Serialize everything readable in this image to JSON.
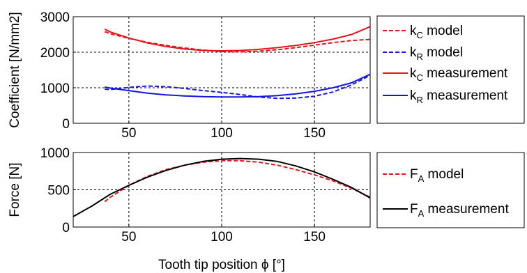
{
  "colors": {
    "model_kc": "#e8141c",
    "model_kr": "#1414e6",
    "meas_kc": "#e8141c",
    "meas_kr": "#1414e6",
    "fa_model": "#e8141c",
    "fa_meas": "#000000"
  },
  "chart_data": [
    {
      "type": "line",
      "title": "",
      "xlabel": "",
      "ylabel": "Coefficient [N/mm2]",
      "xlim": [
        20,
        180
      ],
      "ylim": [
        0,
        3000
      ],
      "xticks": [
        "50",
        "100",
        "150"
      ],
      "yticks": [
        "0",
        "1000",
        "2000",
        "3000"
      ],
      "grid": true,
      "legend_position": "right-outside",
      "series": [
        {
          "legend_main": "k",
          "legend_sub": "C",
          "legend_rest": " model",
          "style": "dashed",
          "color": "#e8141c",
          "x": [
            37,
            40,
            50,
            60,
            70,
            80,
            90,
            100,
            110,
            120,
            130,
            140,
            150,
            160,
            170,
            180
          ],
          "y": [
            2580,
            2520,
            2390,
            2280,
            2190,
            2120,
            2060,
            2020,
            2010,
            2030,
            2070,
            2130,
            2200,
            2270,
            2330,
            2360
          ]
        },
        {
          "legend_main": "k",
          "legend_sub": "R",
          "legend_rest": " model",
          "style": "dashed",
          "color": "#1414e6",
          "x": [
            37,
            40,
            50,
            60,
            70,
            80,
            90,
            100,
            110,
            120,
            130,
            140,
            150,
            160,
            170,
            180
          ],
          "y": [
            960,
            950,
            1010,
            1050,
            1030,
            980,
            920,
            870,
            810,
            740,
            700,
            710,
            760,
            880,
            1080,
            1350
          ]
        },
        {
          "legend_main": "k",
          "legend_sub": "C",
          "legend_rest": " measurement",
          "style": "solid",
          "color": "#e8141c",
          "x": [
            37,
            40,
            50,
            60,
            70,
            80,
            90,
            100,
            110,
            120,
            130,
            140,
            150,
            160,
            170,
            180
          ],
          "y": [
            2650,
            2570,
            2400,
            2260,
            2160,
            2090,
            2050,
            2040,
            2050,
            2080,
            2130,
            2190,
            2270,
            2370,
            2500,
            2720
          ]
        },
        {
          "legend_main": "k",
          "legend_sub": "R",
          "legend_rest": " measurement",
          "style": "solid",
          "color": "#1414e6",
          "x": [
            37,
            40,
            50,
            60,
            70,
            80,
            90,
            100,
            110,
            120,
            130,
            140,
            150,
            160,
            170,
            180
          ],
          "y": [
            1020,
            990,
            920,
            850,
            800,
            770,
            750,
            740,
            740,
            750,
            780,
            830,
            900,
            1000,
            1140,
            1380
          ]
        }
      ]
    },
    {
      "type": "line",
      "title": "",
      "xlabel": "Tooth tip position ϕ [°]",
      "ylabel": "Force [N]",
      "xlim": [
        20,
        180
      ],
      "ylim": [
        0,
        1000
      ],
      "xticks": [
        "50",
        "100",
        "150"
      ],
      "yticks": [
        "0",
        "500",
        "1000"
      ],
      "grid": true,
      "legend_position": "right-outside",
      "series": [
        {
          "legend_main": "F",
          "legend_sub": "A",
          "legend_rest": " model",
          "style": "dashed",
          "color": "#e8141c",
          "x": [
            37,
            40,
            50,
            60,
            70,
            80,
            90,
            100,
            110,
            120,
            130,
            140,
            150,
            160,
            170,
            180
          ],
          "y": [
            340,
            400,
            560,
            680,
            770,
            830,
            870,
            890,
            890,
            870,
            830,
            770,
            700,
            620,
            520,
            400
          ]
        },
        {
          "legend_main": "F",
          "legend_sub": "A",
          "legend_rest": " measurement",
          "style": "solid",
          "color": "#000000",
          "x": [
            20,
            30,
            40,
            50,
            60,
            70,
            80,
            90,
            100,
            110,
            120,
            130,
            140,
            150,
            160,
            170,
            180
          ],
          "y": [
            140,
            280,
            440,
            560,
            670,
            760,
            830,
            880,
            910,
            920,
            910,
            880,
            820,
            740,
            640,
            530,
            390
          ]
        }
      ]
    }
  ]
}
